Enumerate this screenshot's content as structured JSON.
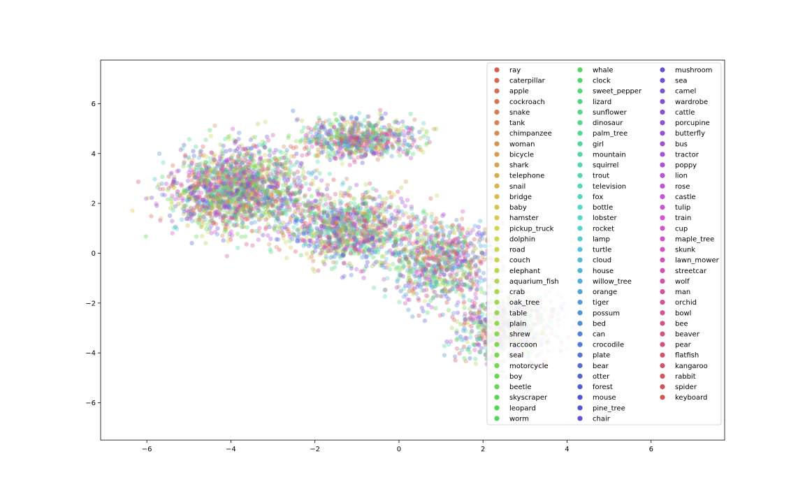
{
  "chart_data": {
    "type": "scatter",
    "title": "",
    "xlabel": "",
    "ylabel": "",
    "xlim": [
      -7.1,
      7.75
    ],
    "ylim": [
      -7.5,
      7.75
    ],
    "x_ticks": [
      -6,
      -4,
      -2,
      0,
      2,
      4,
      6
    ],
    "y_ticks": [
      -6,
      -4,
      -2,
      0,
      2,
      4,
      6
    ],
    "x_tick_labels": [
      "−6",
      "−4",
      "−2",
      "0",
      "2",
      "4",
      "6"
    ],
    "y_tick_labels": [
      "−6",
      "−4",
      "−2",
      "0",
      "2",
      "4",
      "6"
    ],
    "grid": false,
    "legend_position": "upper-right",
    "legend_columns": 3,
    "point_alpha": 0.35,
    "categories": [
      "ray",
      "caterpillar",
      "apple",
      "cockroach",
      "snake",
      "tank",
      "chimpanzee",
      "woman",
      "bicycle",
      "shark",
      "telephone",
      "snail",
      "bridge",
      "baby",
      "hamster",
      "pickup_truck",
      "dolphin",
      "road",
      "couch",
      "elephant",
      "aquarium_fish",
      "crab",
      "oak_tree",
      "table",
      "plain",
      "shrew",
      "raccoon",
      "seal",
      "motorcycle",
      "boy",
      "beetle",
      "skyscraper",
      "leopard",
      "worm",
      "whale",
      "clock",
      "sweet_pepper",
      "lizard",
      "sunflower",
      "dinosaur",
      "palm_tree",
      "girl",
      "mountain",
      "squirrel",
      "trout",
      "television",
      "fox",
      "bottle",
      "lobster",
      "rocket",
      "lamp",
      "turtle",
      "cloud",
      "house",
      "willow_tree",
      "orange",
      "tiger",
      "possum",
      "bed",
      "can",
      "crocodile",
      "plate",
      "bear",
      "otter",
      "forest",
      "mouse",
      "pine_tree",
      "chair",
      "mushroom",
      "sea",
      "camel",
      "wardrobe",
      "cattle",
      "porcupine",
      "butterfly",
      "bus",
      "tractor",
      "poppy",
      "lion",
      "rose",
      "castle",
      "tulip",
      "train",
      "cup",
      "maple_tree",
      "skunk",
      "lawn_mower",
      "streetcar",
      "wolf",
      "man",
      "orchid",
      "bowl",
      "bee",
      "beaver",
      "pear",
      "flatfish",
      "kangaroo",
      "rabbit",
      "spider",
      "keyboard"
    ]
  }
}
